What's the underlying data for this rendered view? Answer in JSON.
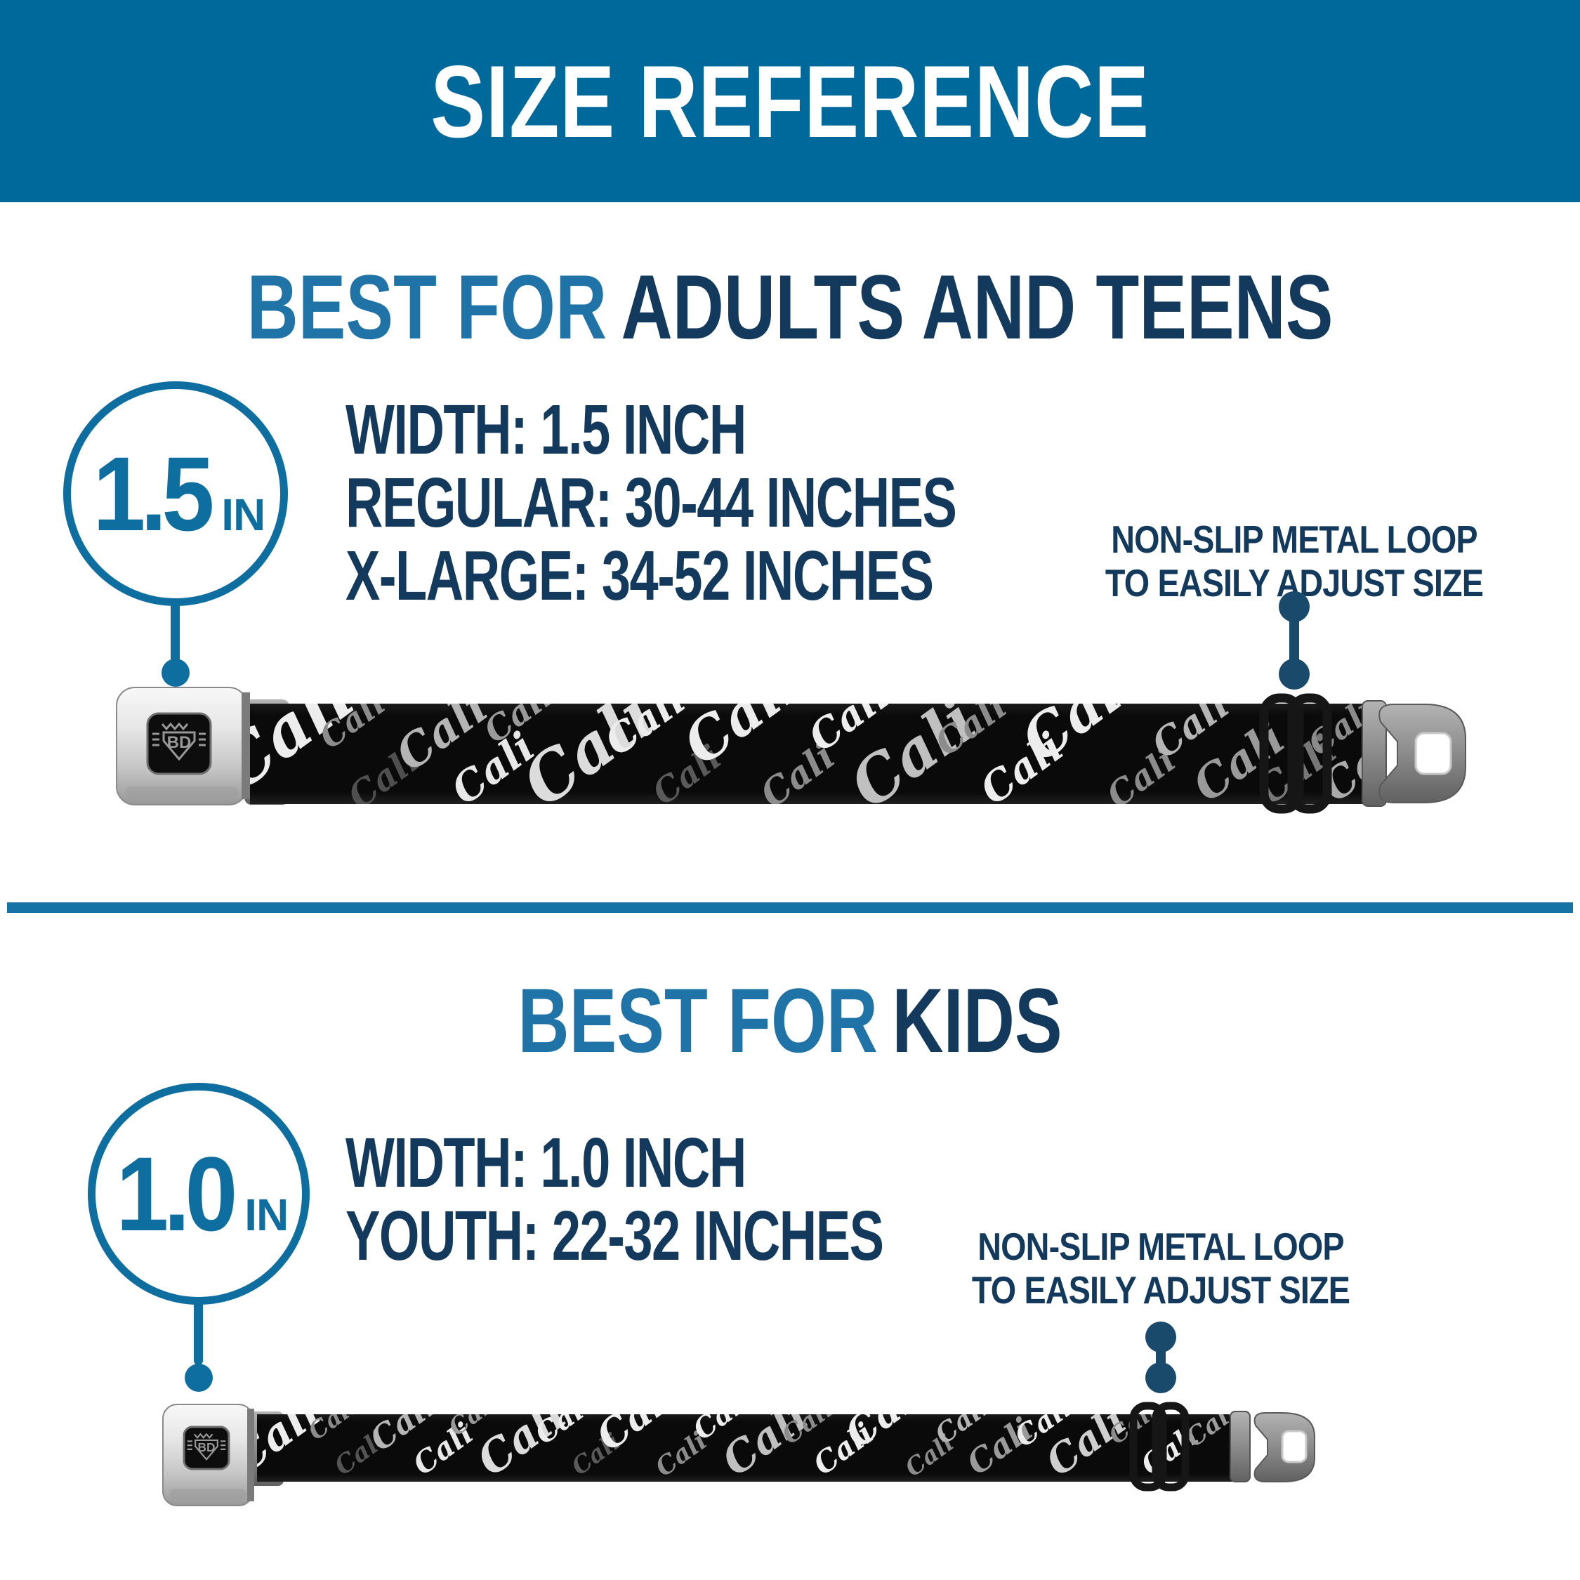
{
  "banner": {
    "title": "SIZE REFERENCE"
  },
  "sections": [
    {
      "id": "adults-and-teens",
      "heading_accent": "BEST FOR",
      "heading_main": "ADULTS AND TEENS",
      "width_badge": {
        "value": "1.5",
        "unit": "IN"
      },
      "specs": [
        "WIDTH: 1.5 INCH",
        "REGULAR: 30-44 INCHES",
        "X-LARGE: 34-52 INCHES"
      ],
      "callout": {
        "line1": "NON-SLIP METAL LOOP",
        "line2": "TO EASILY ADJUST SIZE"
      },
      "belt": {
        "strap_text": "Cali",
        "buckle_logo": "BD"
      }
    },
    {
      "id": "kids",
      "heading_accent": "BEST FOR",
      "heading_main": "KIDS",
      "width_badge": {
        "value": "1.0",
        "unit": "IN"
      },
      "specs": [
        "WIDTH: 1.0 INCH",
        "YOUTH: 22-32 INCHES"
      ],
      "callout": {
        "line1": "NON-SLIP METAL LOOP",
        "line2": "TO EASILY ADJUST SIZE"
      },
      "belt": {
        "strap_text": "Cali",
        "buckle_logo": "BD"
      }
    }
  ],
  "colors": {
    "banner_bg": "#00699B",
    "divider": "#1574A5",
    "accent_blue": "#1F73A6",
    "dark_navy": "#133A5C",
    "circle_blue": "#0E6EA0",
    "connector_navy": "#1A4A6B",
    "strap_black": "#0B0B0B"
  }
}
